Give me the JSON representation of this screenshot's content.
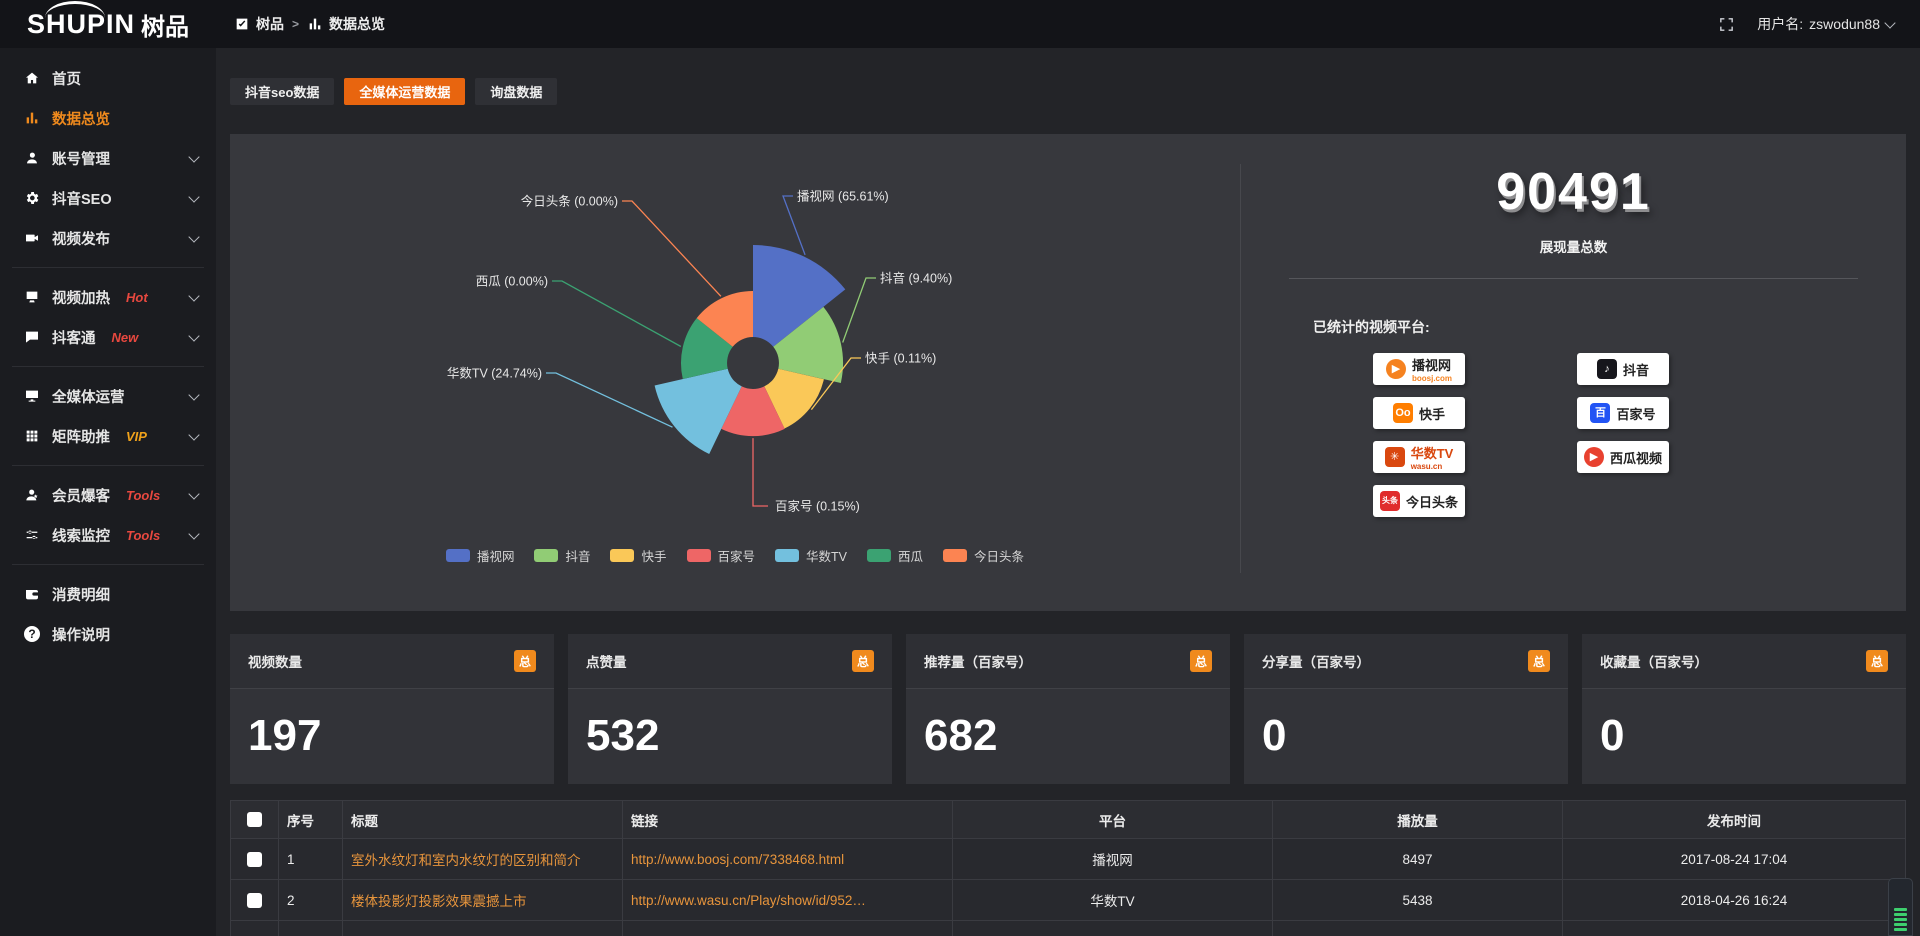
{
  "brand": {
    "logo_en": "SHUPIN",
    "logo_cn": "树品"
  },
  "header": {
    "breadcrumb": [
      {
        "label": "树品",
        "icon": "square"
      },
      {
        "label": "数据总览",
        "icon": "chart"
      }
    ],
    "separator": ">",
    "username_prefix": "用户名:",
    "username": "zswodun88"
  },
  "sidebar": {
    "items": [
      {
        "type": "item",
        "label": "首页",
        "icon": "home"
      },
      {
        "type": "item",
        "label": "数据总览",
        "icon": "chart",
        "active": true
      },
      {
        "type": "item",
        "label": "账号管理",
        "icon": "user",
        "chevron": true
      },
      {
        "type": "item",
        "label": "抖音SEO",
        "icon": "gear",
        "chevron": true
      },
      {
        "type": "item",
        "label": "视频发布",
        "icon": "video",
        "chevron": true
      },
      {
        "type": "divider"
      },
      {
        "type": "item",
        "label": "视频加热",
        "icon": "heat",
        "badge": "Hot",
        "badge_color": "#e8483f",
        "chevron": true
      },
      {
        "type": "item",
        "label": "抖客通",
        "icon": "chat",
        "badge": "New",
        "badge_color": "#e8483f",
        "chevron": true
      },
      {
        "type": "divider"
      },
      {
        "type": "item",
        "label": "全媒体运营",
        "icon": "media",
        "chevron": true
      },
      {
        "type": "item",
        "label": "矩阵助推",
        "icon": "matrix",
        "badge": "VIP",
        "badge_color": "#f0a21b",
        "chevron": true
      },
      {
        "type": "divider"
      },
      {
        "type": "item",
        "label": "会员爆客",
        "icon": "member",
        "badge": "Tools",
        "badge_color": "#e8483f",
        "chevron": true
      },
      {
        "type": "item",
        "label": "线索监控",
        "icon": "leads",
        "badge": "Tools",
        "badge_color": "#e8483f",
        "chevron": true
      },
      {
        "type": "divider"
      },
      {
        "type": "item",
        "label": "消费明细",
        "icon": "wallet"
      },
      {
        "type": "item",
        "label": "操作说明",
        "icon": "help"
      }
    ]
  },
  "tabs": [
    {
      "label": "抖音seo数据",
      "active": false
    },
    {
      "label": "全媒体运营数据",
      "active": true
    },
    {
      "label": "询盘数据",
      "active": false
    }
  ],
  "chart_data": {
    "type": "pie",
    "subtype": "nightingale-rose",
    "categories": [
      "播视网",
      "抖音",
      "快手",
      "百家号",
      "华数TV",
      "西瓜",
      "今日头条"
    ],
    "values_percent": [
      65.61,
      9.4,
      0.11,
      0.15,
      24.74,
      0.0,
      0.0
    ],
    "labels": [
      "播视网 (65.61%)",
      "抖音 (9.40%)",
      "快手 (0.11%)",
      "百家号 (0.15%)",
      "华数TV (24.74%)",
      "西瓜 (0.00%)",
      "今日头条 (0.00%)"
    ],
    "colors": [
      "#5470c6",
      "#91cc75",
      "#fac858",
      "#ee6666",
      "#73c0de",
      "#3ba272",
      "#fc8452"
    ],
    "legend_position": "bottom",
    "legend": [
      "播视网",
      "抖音",
      "快手",
      "百家号",
      "华数TV",
      "西瓜",
      "今日头条"
    ]
  },
  "summary": {
    "total_value": "90491",
    "total_label": "展现量总数",
    "platforms_label": "已统计的视频平台:",
    "platform_columns": [
      [
        {
          "name": "播视网",
          "sub": "boosj.com",
          "sub_color": "#f58220",
          "glyph": "▶",
          "glyph_bg": "#f58220",
          "glyph_shape": "circle"
        },
        {
          "name": "快手",
          "glyph": "Oo",
          "glyph_bg": "#ff7e00",
          "glyph_shape": "square"
        },
        {
          "name": "华数TV",
          "sub": "wasu.cn",
          "sub_color": "#d9480f",
          "name_color": "#d9480f",
          "glyph": "✳",
          "glyph_bg": "#d9480f",
          "glyph_shape": "square"
        },
        {
          "name": "今日头条",
          "glyph": "头条",
          "glyph_bg": "#e02c2c",
          "glyph_shape": "square"
        }
      ],
      [
        {
          "name": "抖音",
          "glyph": "♪",
          "glyph_bg": "#16161c",
          "glyph_shape": "square"
        },
        {
          "name": "百家号",
          "glyph": "百",
          "glyph_bg": "#2254f4",
          "glyph_shape": "square"
        },
        {
          "name": "西瓜视频",
          "glyph": "▶",
          "glyph_bg": "#e8412f",
          "glyph_shape": "circle"
        }
      ]
    ]
  },
  "stat_cards": [
    {
      "title": "视频数量",
      "badge": "总",
      "value": "197"
    },
    {
      "title": "点赞量",
      "badge": "总",
      "value": "532"
    },
    {
      "title": "推荐量（百家号）",
      "badge": "总",
      "value": "682"
    },
    {
      "title": "分享量（百家号）",
      "badge": "总",
      "value": "0"
    },
    {
      "title": "收藏量（百家号）",
      "badge": "总",
      "value": "0"
    }
  ],
  "table": {
    "headers": [
      "序号",
      "标题",
      "链接",
      "平台",
      "播放量",
      "发布时间"
    ],
    "rows": [
      {
        "index": "1",
        "title": "室外水纹灯和室内水纹灯的区别和简介",
        "link": "http://www.boosj.com/7338468.html",
        "platform": "播视网",
        "plays": "8497",
        "time": "2017-08-24 17:04"
      },
      {
        "index": "2",
        "title": "楼体投影灯投影效果震撼上市",
        "link": "http://www.wasu.cn/Play/show/id/952…",
        "platform": "华数TV",
        "plays": "5438",
        "time": "2018-04-26 16:24"
      }
    ]
  }
}
